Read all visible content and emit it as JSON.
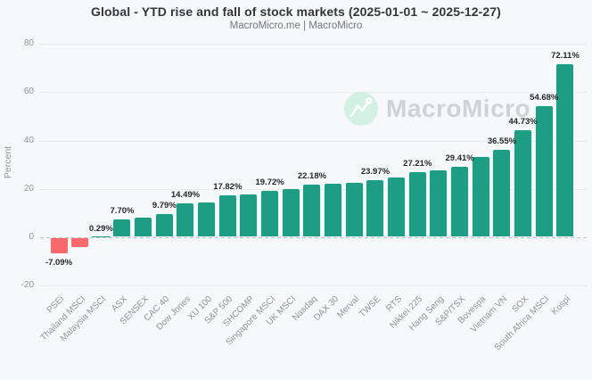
{
  "header": {
    "title": "Global - YTD rise and fall of stock markets (2025-01-01 ~ 2025-12-27)",
    "subtitle": "MacroMicro.me | MacroMicro"
  },
  "watermark": {
    "text": "MacroMicro",
    "logo_icon": "macromicro-line-chart-icon",
    "circle_color": "#d3f0e4"
  },
  "chart_data": {
    "type": "bar",
    "title": "Global - YTD rise and fall of stock markets (2025-01-01 ~ 2025-12-27)",
    "subtitle": "MacroMicro.me | MacroMicro",
    "xlabel": "",
    "ylabel": "Percent",
    "ylim": [
      -20,
      80
    ],
    "yticks": [
      80,
      60,
      40,
      20,
      0,
      -20
    ],
    "grid": true,
    "legend": "none",
    "zero_line_style": "dashed",
    "xlabel_rotation": -45,
    "colors": {
      "positive": "#1d9e84",
      "negative": "#f8696d"
    },
    "points": [
      {
        "category": "PSEi",
        "value": -7.09,
        "label": "-7.09%"
      },
      {
        "category": "Thailand MSCI",
        "value": -4.3
      },
      {
        "category": "Malaysia MSCI",
        "value": 0.29,
        "label": "0.29%"
      },
      {
        "category": "ASX",
        "value": 7.7,
        "label": "7.70%"
      },
      {
        "category": "SENSEX",
        "value": 8.5
      },
      {
        "category": "CAC 40",
        "value": 9.79,
        "label": "9.79%"
      },
      {
        "category": "Dow Jones",
        "value": 14.49,
        "label": "14.49%"
      },
      {
        "category": "XU 100",
        "value": 14.6
      },
      {
        "category": "S&P 500",
        "value": 17.82,
        "label": "17.82%"
      },
      {
        "category": "SHCOMP",
        "value": 18.2
      },
      {
        "category": "Singapore MSCI",
        "value": 19.72,
        "label": "19.72%"
      },
      {
        "category": "UK MSCI",
        "value": 20.3
      },
      {
        "category": "Nasdaq",
        "value": 22.18,
        "label": "22.18%"
      },
      {
        "category": "DAX 30",
        "value": 22.4
      },
      {
        "category": "Merval",
        "value": 22.9
      },
      {
        "category": "TWSE",
        "value": 23.97,
        "label": "23.97%"
      },
      {
        "category": "RTS",
        "value": 25.0
      },
      {
        "category": "Nikkei 225",
        "value": 27.21,
        "label": "27.21%"
      },
      {
        "category": "Hang Seng",
        "value": 28.0
      },
      {
        "category": "S&P/TSX",
        "value": 29.41,
        "label": "29.41%"
      },
      {
        "category": "Bovespa",
        "value": 33.5
      },
      {
        "category": "Vietnam VN",
        "value": 36.55,
        "label": "36.55%"
      },
      {
        "category": "SOX",
        "value": 44.73,
        "label": "44.73%"
      },
      {
        "category": "South Africa MSCI",
        "value": 54.68,
        "label": "54.68%"
      },
      {
        "category": "Kospi",
        "value": 72.11,
        "label": "72.11%"
      }
    ]
  }
}
